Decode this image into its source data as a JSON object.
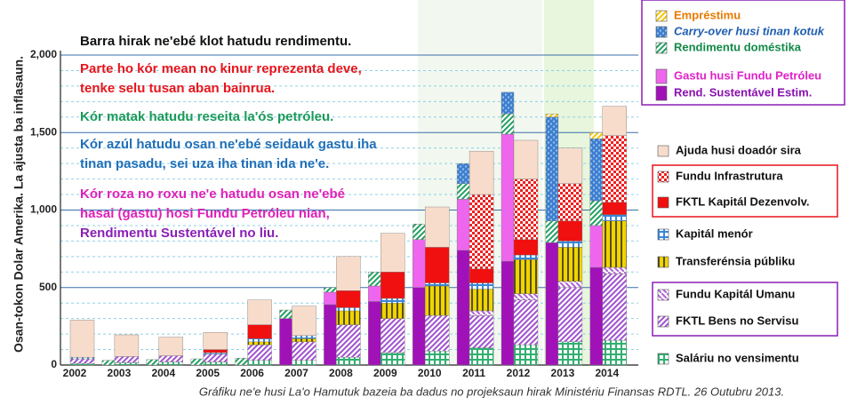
{
  "chart_data": {
    "type": "bar",
    "stacked": true,
    "ylabel": "Osan-tokon Dolar Amerika.  La ajusta ba inflasaun.",
    "caption": "Gráfiku ne'e husi La'o Hamutuk bazeia ba dadus no projeksaun hirak Ministériu Finansas RDTL. 26 Outubru 2013.",
    "annotations": [
      {
        "lines": [
          "Barra hirak ne'ebé klot hatudu rendimentu."
        ],
        "color": "#111111"
      },
      {
        "lines": [
          "Parte ho kór mean no kinur reprezenta deve,",
          "tenke selu tusan aban bainrua."
        ],
        "color": "#e8141b"
      },
      {
        "lines": [
          "Kór matak hatudu reseita la'ós petróleu."
        ],
        "color": "#1a9a5a"
      },
      {
        "lines": [
          "Kór azúl hatudu osan ne'ebé seidauk gastu iha",
          "tinan pasadu, sei uza iha tinan ida ne'e."
        ],
        "color": "#1f6fb8"
      },
      {
        "lines": [
          "Kór roza no roxu ne'e hatudu osan ne'ebé",
          "hasai (gastu) hosi Fundu Petróleu nian,"
        ],
        "color": "#e020b8"
      },
      {
        "lines": [
          "Rendimentu Sustentável no liu."
        ],
        "color": "#8a1fb5"
      }
    ],
    "categories": [
      "2002",
      "2003",
      "2004",
      "2005",
      "2006",
      "2007",
      "2008",
      "2009",
      "2010",
      "2011",
      "2012",
      "2013",
      "2014"
    ],
    "ylim": [
      0,
      2000
    ],
    "yticks": [
      0,
      500,
      {
        "value": 1000,
        "label": "1,000"
      },
      {
        "value": 1500,
        "label": "1,500"
      },
      {
        "value": 2000,
        "label": "2,000"
      }
    ],
    "minor_yticks": [
      100,
      200,
      300,
      400,
      600,
      700,
      800,
      900,
      1100,
      1200,
      1300,
      1400,
      1600,
      1700,
      1800,
      1900
    ],
    "grid": true,
    "series": [
      {
        "name": "Empréstimu",
        "stack": "revenue",
        "color": "#f5c400",
        "pattern": "diag",
        "label_color": "#e87a00",
        "values": [
          0,
          0,
          0,
          0,
          0,
          0,
          0,
          0,
          0,
          0,
          0,
          20,
          40
        ]
      },
      {
        "name": "Carry-over husi tinan kotuk",
        "stack": "revenue",
        "color": "#3c7fd0",
        "pattern": "dots",
        "label_color": "#1f5fb0",
        "values": [
          0,
          0,
          0,
          0,
          0,
          0,
          0,
          0,
          0,
          130,
          140,
          670,
          400
        ]
      },
      {
        "name": "Rendimentu doméstika",
        "stack": "revenue",
        "color": "#1fa060",
        "pattern": "diag",
        "label_color": "#128a48",
        "values": [
          0,
          30,
          35,
          40,
          45,
          55,
          30,
          90,
          100,
          100,
          130,
          140,
          160
        ]
      },
      {
        "name": "Gastu husi Fundu Petróleu",
        "stack": "revenue",
        "color": "#ee66ee",
        "pattern": "",
        "label_color": "#e020c8",
        "values": [
          0,
          0,
          0,
          0,
          0,
          0,
          80,
          100,
          310,
          330,
          820,
          0,
          270
        ]
      },
      {
        "name": "Rend. Sustentável Estim.",
        "stack": "revenue",
        "color": "#a012b8",
        "pattern": "",
        "label_color": "#8a10b0",
        "values": [
          0,
          0,
          0,
          0,
          0,
          300,
          390,
          410,
          500,
          740,
          670,
          790,
          630
        ]
      },
      {
        "name": "Ajuda husi doadór sira",
        "stack": "expenditure",
        "color": "#f8dccb",
        "pattern": "",
        "label_color": "#111111",
        "values": [
          240,
          140,
          120,
          110,
          160,
          190,
          220,
          250,
          260,
          280,
          250,
          230,
          190
        ]
      },
      {
        "name": "Fundu Infrastrutura",
        "stack": "expenditure",
        "color": "#ee2020",
        "pattern": "checks",
        "label_color": "#111111",
        "values": [
          0,
          0,
          0,
          0,
          0,
          0,
          0,
          0,
          0,
          480,
          390,
          240,
          430
        ]
      },
      {
        "name": "FKTL Kapitál Dezenvolv.",
        "stack": "expenditure",
        "color": "#f01010",
        "pattern": "",
        "label_color": "#111111",
        "values": [
          0,
          0,
          0,
          20,
          90,
          0,
          110,
          170,
          230,
          90,
          100,
          130,
          80
        ]
      },
      {
        "name": "Kapitál menór",
        "stack": "expenditure",
        "color": "#3a86d8",
        "pattern": "grid",
        "label_color": "#111111",
        "values": [
          10,
          0,
          0,
          10,
          20,
          20,
          20,
          30,
          20,
          40,
          30,
          40,
          40
        ]
      },
      {
        "name": "Transferénsia públiku",
        "stack": "expenditure",
        "color": "#f0d400",
        "pattern": "vstripe",
        "label_color": "#111111",
        "values": [
          0,
          0,
          0,
          0,
          20,
          20,
          90,
          100,
          190,
          140,
          220,
          220,
          300
        ]
      },
      {
        "name": "Fundu Kapitál Umanu",
        "stack": "expenditure",
        "color": "#b060d8",
        "pattern": "diag2",
        "label_color": "#111111",
        "values": [
          0,
          0,
          0,
          0,
          0,
          0,
          0,
          0,
          0,
          30,
          40,
          40,
          40
        ]
      },
      {
        "name": "FKTL Bens no Servisu",
        "stack": "expenditure",
        "color": "#a050d0",
        "pattern": "diag",
        "label_color": "#111111",
        "values": [
          30,
          40,
          40,
          50,
          100,
          120,
          210,
          220,
          230,
          210,
          290,
          350,
          430
        ]
      },
      {
        "name": "Saláriu no vensimentu",
        "stack": "expenditure",
        "color": "#30b070",
        "pattern": "grid",
        "label_color": "#111111",
        "values": [
          10,
          15,
          20,
          20,
          30,
          30,
          50,
          80,
          90,
          110,
          130,
          150,
          160
        ]
      }
    ]
  }
}
